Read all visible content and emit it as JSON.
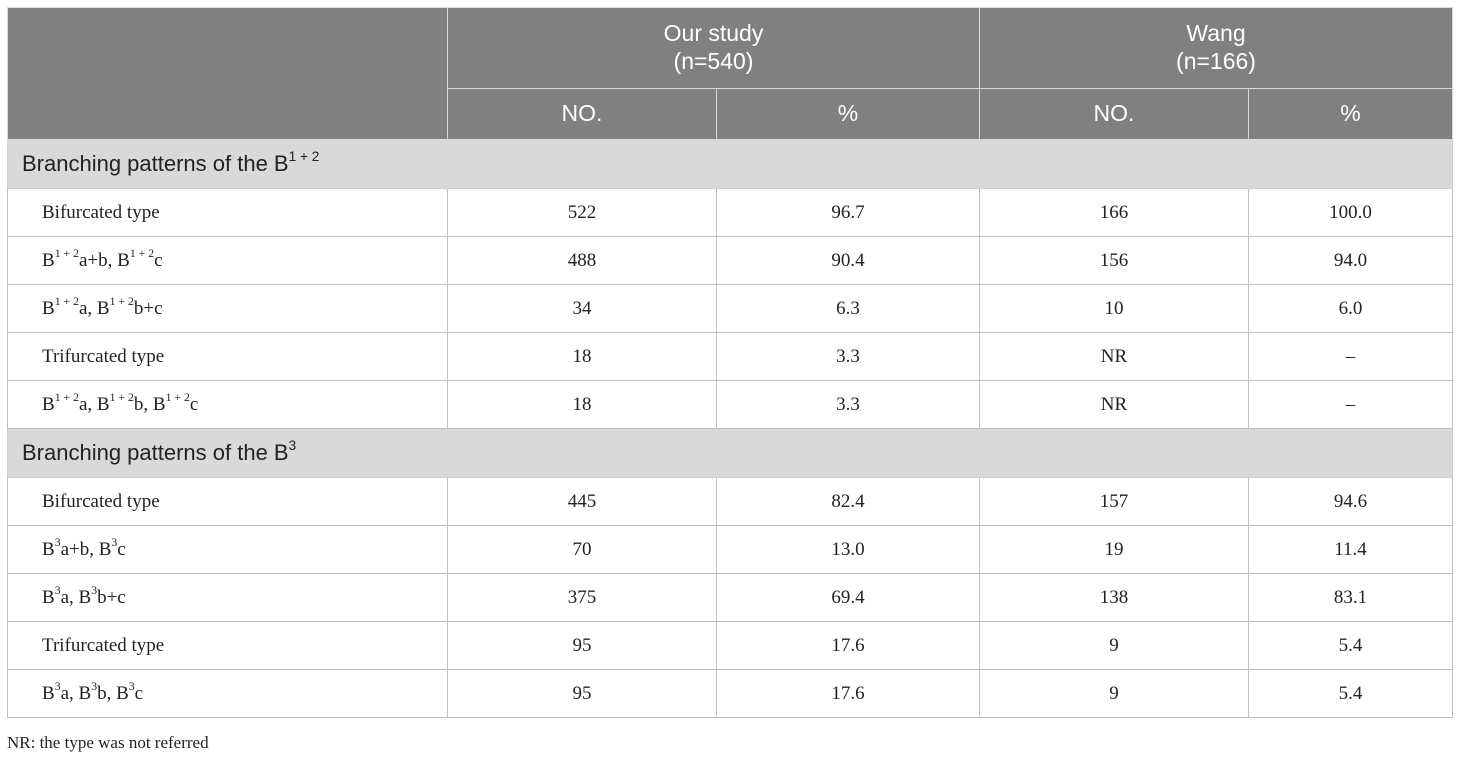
{
  "header": {
    "group1": {
      "title": "Our study",
      "n": "(n=540)"
    },
    "group2": {
      "title": "Wang",
      "n": "(n=166)"
    },
    "no_label": "NO.",
    "pct_label": "%"
  },
  "sections": [
    {
      "title_prefix": "Branching patterns of the B",
      "title_sup": "1 + 2",
      "rows": [
        {
          "parts": [
            "Bifurcated type"
          ],
          "our_no": "522",
          "our_pct": "96.7",
          "wang_no": "166",
          "wang_pct": "100.0"
        },
        {
          "parts": [
            "B",
            "1 + 2",
            "a+b, B",
            "1 + 2",
            "c"
          ],
          "our_no": "488",
          "our_pct": "90.4",
          "wang_no": "156",
          "wang_pct": "94.0"
        },
        {
          "parts": [
            "B",
            "1 + 2",
            "a, B",
            "1 + 2",
            "b+c"
          ],
          "our_no": "34",
          "our_pct": "6.3",
          "wang_no": "10",
          "wang_pct": "6.0"
        },
        {
          "parts": [
            "Trifurcated type"
          ],
          "our_no": "18",
          "our_pct": "3.3",
          "wang_no": "NR",
          "wang_pct": "–"
        },
        {
          "parts": [
            "B",
            "1 + 2",
            "a, B",
            "1 + 2",
            "b, B",
            "1 + 2",
            "c"
          ],
          "our_no": "18",
          "our_pct": "3.3",
          "wang_no": "NR",
          "wang_pct": "–"
        }
      ]
    },
    {
      "title_prefix": "Branching patterns of the B",
      "title_sup": "3",
      "rows": [
        {
          "parts": [
            "Bifurcated type"
          ],
          "our_no": "445",
          "our_pct": "82.4",
          "wang_no": "157",
          "wang_pct": "94.6"
        },
        {
          "parts": [
            "B",
            "3",
            "a+b, B",
            "3",
            "c"
          ],
          "our_no": "70",
          "our_pct": "13.0",
          "wang_no": "19",
          "wang_pct": "11.4"
        },
        {
          "parts": [
            "B",
            "3",
            "a, B",
            "3",
            "b+c"
          ],
          "our_no": "375",
          "our_pct": "69.4",
          "wang_no": "138",
          "wang_pct": "83.1"
        },
        {
          "parts": [
            "Trifurcated type"
          ],
          "our_no": "95",
          "our_pct": "17.6",
          "wang_no": "9",
          "wang_pct": "5.4"
        },
        {
          "parts": [
            "B",
            "3",
            "a, B",
            "3",
            "b, B",
            "3",
            "c"
          ],
          "our_no": "95",
          "our_pct": "17.6",
          "wang_no": "9",
          "wang_pct": "5.4"
        }
      ]
    }
  ],
  "footnote": "NR: the type was not referred"
}
